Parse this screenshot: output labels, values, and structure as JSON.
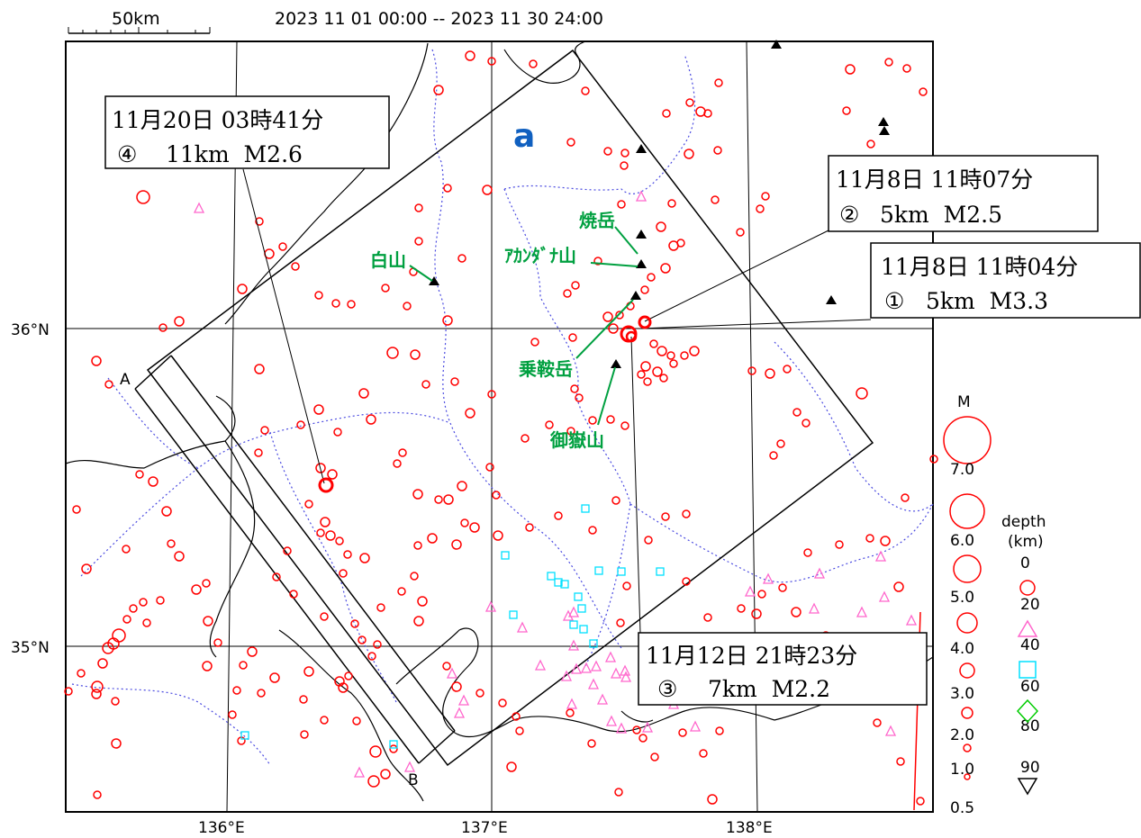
{
  "period": "2023 11 01 00:00 -- 2023 11 30 24:00",
  "scale_label": "50km",
  "area_label": "a",
  "profile": {
    "start": "A",
    "end": "B"
  },
  "axes": {
    "lon_labels": [
      "136°E",
      "137°E",
      "138°E"
    ],
    "lat_labels": [
      "36°N",
      "35°N"
    ]
  },
  "events": [
    {
      "date": "11月8日 11時04分",
      "num": "①",
      "detail": "5km  M3.3",
      "mag": 3.3,
      "depth_km": 5
    },
    {
      "date": "11月8日 11時07分",
      "num": "②",
      "detail": "5km  M2.5",
      "mag": 2.5,
      "depth_km": 5
    },
    {
      "date": "11月12日 21時23分",
      "num": "③",
      "detail": "7km  M2.2",
      "mag": 2.2,
      "depth_km": 7
    },
    {
      "date": "11月20日 03時41分",
      "num": "④",
      "detail": "11km  M2.6",
      "mag": 2.6,
      "depth_km": 11
    }
  ],
  "volcanoes": [
    "焼岳",
    "ｱｶﾝﾀﾞﾅ山",
    "白山",
    "乗鞍岳",
    "御嶽山"
  ],
  "legend": {
    "mag_title": "M",
    "mag_values": [
      "7.0",
      "6.0",
      "5.0",
      "4.0",
      "3.0",
      "2.0",
      "1.0",
      "0.5"
    ],
    "depth_title": [
      "depth",
      "(km)"
    ],
    "depth_values": [
      "0",
      "20",
      "40",
      "60",
      "80",
      "90"
    ]
  },
  "colors": {
    "shallow": "#ff0000",
    "depth_20_40": "#ff66cc",
    "depth_40_60": "#00e0ff",
    "depth_60_80": "#00cc00",
    "volcano_label": "#00a040",
    "area_label": "#1060c0",
    "boundary": "#4a4ae0"
  }
}
